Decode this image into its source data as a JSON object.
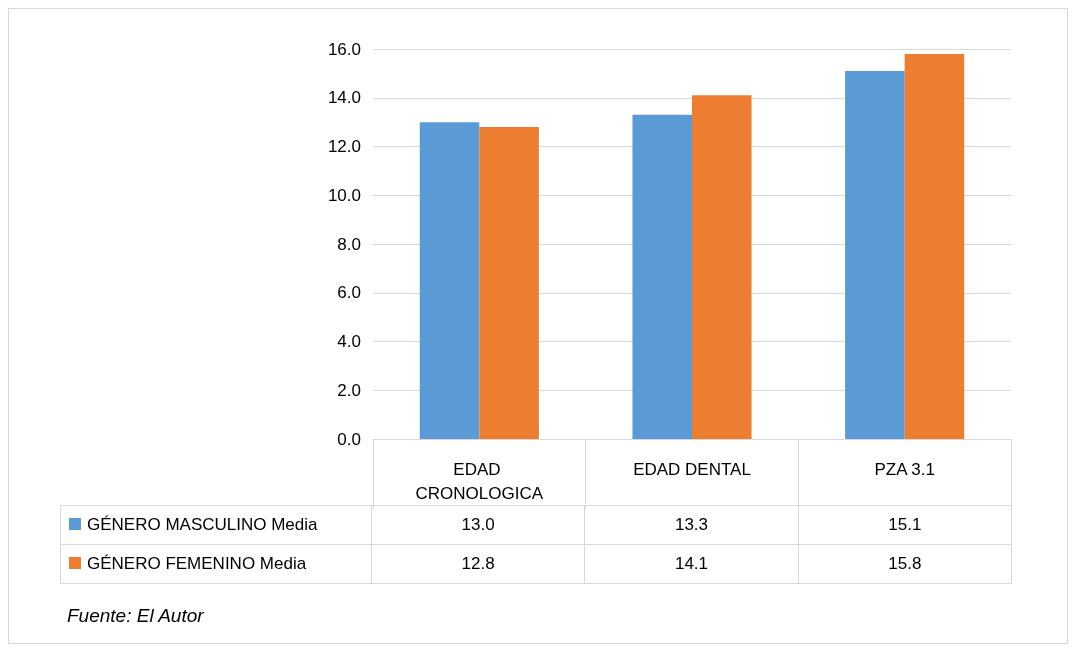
{
  "chart_data": {
    "type": "bar",
    "categories": [
      "EDAD CRONOLOGICA",
      "EDAD DENTAL",
      "PZA 3.1"
    ],
    "series": [
      {
        "name": "GÉNERO MASCULINO Media",
        "color": "#5b9bd5",
        "values": [
          13.0,
          13.3,
          15.1
        ],
        "value_labels": [
          "13.0",
          "13.3",
          "15.1"
        ]
      },
      {
        "name": "GÉNERO FEMENINO Media",
        "color": "#ed7d31",
        "values": [
          12.8,
          14.1,
          15.8
        ],
        "value_labels": [
          "12.8",
          "14.1",
          "15.8"
        ]
      }
    ],
    "ylim": [
      0,
      16
    ],
    "yticks": [
      {
        "value": 0,
        "label": "0.0"
      },
      {
        "value": 2,
        "label": "2.0"
      },
      {
        "value": 4,
        "label": "4.0"
      },
      {
        "value": 6,
        "label": "6.0"
      },
      {
        "value": 8,
        "label": "8.0"
      },
      {
        "value": 10,
        "label": "10.0"
      },
      {
        "value": 12,
        "label": "12.0"
      },
      {
        "value": 14,
        "label": "14.0"
      },
      {
        "value": 16,
        "label": "16.0"
      }
    ],
    "grid": "y",
    "legend": "bottom",
    "annotations": [
      "Fuente: El Autor"
    ]
  }
}
